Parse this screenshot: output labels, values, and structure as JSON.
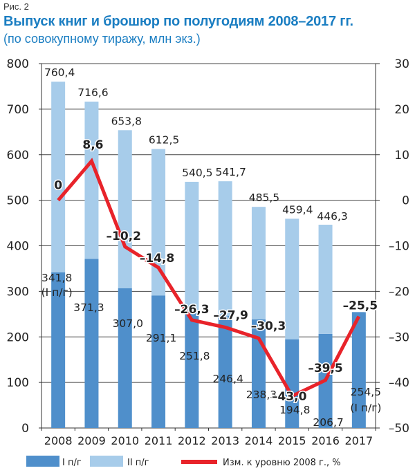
{
  "figure_label": "Рис. 2",
  "title": "Выпуск книг и брошюр по полугодиям 2008–2017 гг.",
  "subtitle": "(по совокупному тиражу, млн экз.)",
  "colors": {
    "h1": "#4f8fcb",
    "h2": "#a7ccea",
    "line": "#e8232a",
    "title": "#1b7ec2"
  },
  "chart_data": {
    "type": "bar",
    "stacked": true,
    "title": "Выпуск книг и брошюр по полугодиям 2008–2017 гг.",
    "subtitle": "(по совокупному тиражу, млн экз.)",
    "categories": [
      "2008",
      "2009",
      "2010",
      "2011",
      "2012",
      "2013",
      "2014",
      "2015",
      "2016",
      "2017"
    ],
    "series": [
      {
        "name": "I п/г",
        "type": "bar",
        "axis": "left",
        "values": [
          341.8,
          371.3,
          307.0,
          291.1,
          251.8,
          246.4,
          238.3,
          194.8,
          206.7,
          254.5
        ],
        "labels": [
          "341,8",
          "371,3",
          "307,0",
          "291,1",
          "251,8",
          "246,4",
          "238,3",
          "194,8",
          "206,7",
          "254,5"
        ]
      },
      {
        "name": "II п/г",
        "type": "bar",
        "axis": "left",
        "values": [
          418.6,
          345.3,
          346.8,
          321.4,
          288.7,
          295.3,
          247.2,
          264.6,
          239.6,
          null
        ]
      },
      {
        "name": "Изм. к уровню 2008 г., %",
        "type": "line",
        "axis": "right",
        "values": [
          0,
          8.6,
          -10.2,
          -14.8,
          -26.3,
          -27.9,
          -30.3,
          -43.0,
          -39.5,
          -25.5
        ],
        "labels": [
          "0",
          "8,6",
          "–10,2",
          "–14,8",
          "–26,3",
          "–27,9",
          "–30,3",
          "–43,0",
          "–39,5",
          "–25,5"
        ]
      }
    ],
    "totals": [
      760.4,
      716.6,
      653.8,
      612.5,
      540.5,
      541.7,
      485.5,
      459.4,
      446.3,
      null
    ],
    "total_labels": [
      "760,4",
      "716,6",
      "653,8",
      "612,5",
      "540,5",
      "541,7",
      "485,5",
      "459,4",
      "446,3",
      ""
    ],
    "annotations": {
      "first_bar_note": "(I п/г)",
      "last_bar_note": "(I п/г)"
    },
    "y_left": {
      "ylim": [
        0,
        800
      ],
      "ticks": [
        0,
        100,
        200,
        300,
        400,
        500,
        600,
        700,
        800
      ]
    },
    "y_right": {
      "ylim": [
        -50,
        30
      ],
      "ticks": [
        "30",
        "20",
        "10",
        "0",
        "–10",
        "–20",
        "–30",
        "–40",
        "–50"
      ],
      "tick_values": [
        30,
        20,
        10,
        0,
        -10,
        -20,
        -30,
        -40,
        -50
      ]
    },
    "grid": true,
    "legend_position": "bottom",
    "legend": [
      "I п/г",
      "II п/г",
      "Изм. к уровню 2008 г., %"
    ]
  }
}
